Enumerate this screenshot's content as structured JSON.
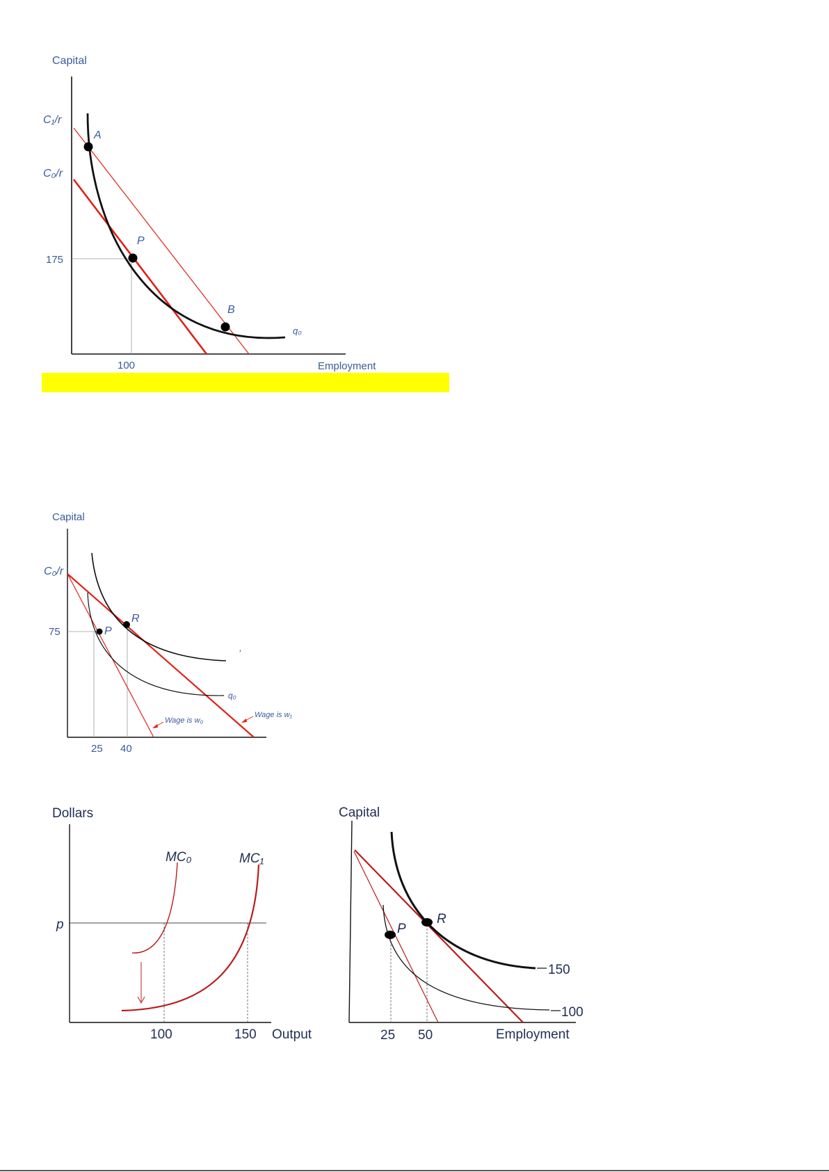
{
  "colors": {
    "axis": "#111111",
    "curve": "#111111",
    "isocost": "#e0201a",
    "mc": "#b81c1c",
    "label_blue": "#3b5a9a",
    "label_dark": "#1f2d52",
    "highlight": "#ffff00",
    "guide": "#999999"
  },
  "figure1": {
    "y_axis_title": "Capital",
    "x_axis_title": "Employment",
    "c1_label": "C₁/r",
    "c0_label": "C₀/r",
    "y_tick_175": "175",
    "x_tick_100": "100",
    "point_a": "A",
    "point_p": "P",
    "point_b": "B",
    "isoquant_label": "q₀"
  },
  "figure2": {
    "y_axis_title": "Capital",
    "c0_label": "C₀/r",
    "y_tick_75": "75",
    "point_p": "P",
    "point_r": "R",
    "isoquant_label": "q₀",
    "upper_isoquant_label": "’",
    "wage_w0": "Wage is w₀",
    "wage_w1": "Wage is w₁",
    "x_tick_25": "25",
    "x_tick_40": "40"
  },
  "figure3": {
    "y_axis_title": "Dollars",
    "mc0_label": "MC₀",
    "mc1_label": "MC₁",
    "price_label": "p",
    "x_tick_100": "100",
    "x_tick_150": "150",
    "x_axis_title": "Output"
  },
  "figure4": {
    "y_axis_title": "Capital",
    "point_p": "P",
    "point_r": "R",
    "isoquant_150": "150",
    "isoquant_100": "100",
    "x_tick_25": "25",
    "x_tick_50": "50",
    "x_axis_title": "Employment"
  }
}
